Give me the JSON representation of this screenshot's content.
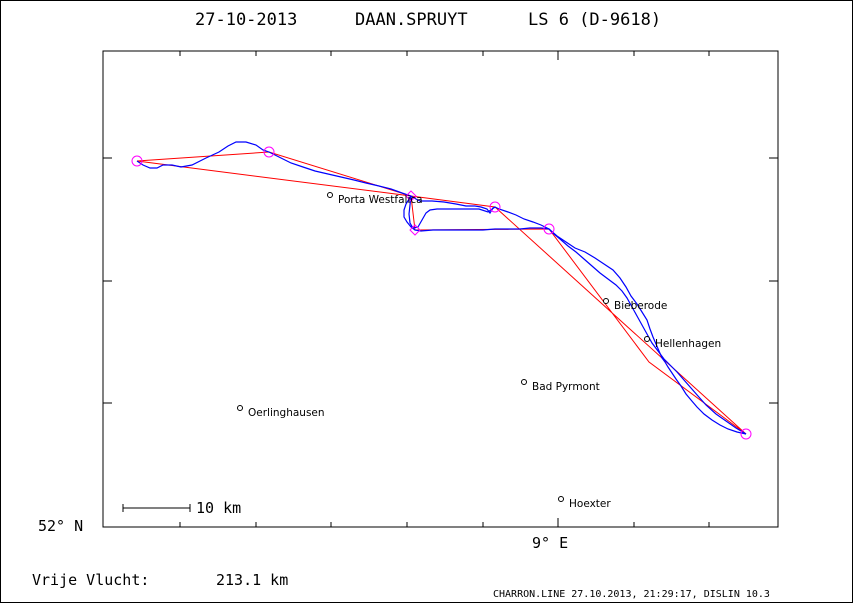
{
  "header": {
    "date": "27-10-2013",
    "pilot": "DAAN.SPRUYT",
    "glider": "LS 6 (D-9618)"
  },
  "axes": {
    "lat_label": "52° N",
    "lon_label": "9° E"
  },
  "scale_bar": {
    "label": "10 km",
    "value_km": 10
  },
  "places": [
    {
      "name": "Porta Westfalica"
    },
    {
      "name": "Bieberode"
    },
    {
      "name": "Hellenhagen"
    },
    {
      "name": "Bad Pyrmont"
    },
    {
      "name": "Oerlinghausen"
    },
    {
      "name": "Hoexter"
    }
  ],
  "flight": {
    "label": "Vrije Vlucht:",
    "distance": "213.1 km"
  },
  "footer": {
    "text": "CHARRON.LINE 27.10.2013, 21:29:17, DISLIN 10.3"
  },
  "colors": {
    "track": "#0000ff",
    "task": "#ff0000",
    "turnpoint": "#ff00ff",
    "frame": "#000000"
  }
}
